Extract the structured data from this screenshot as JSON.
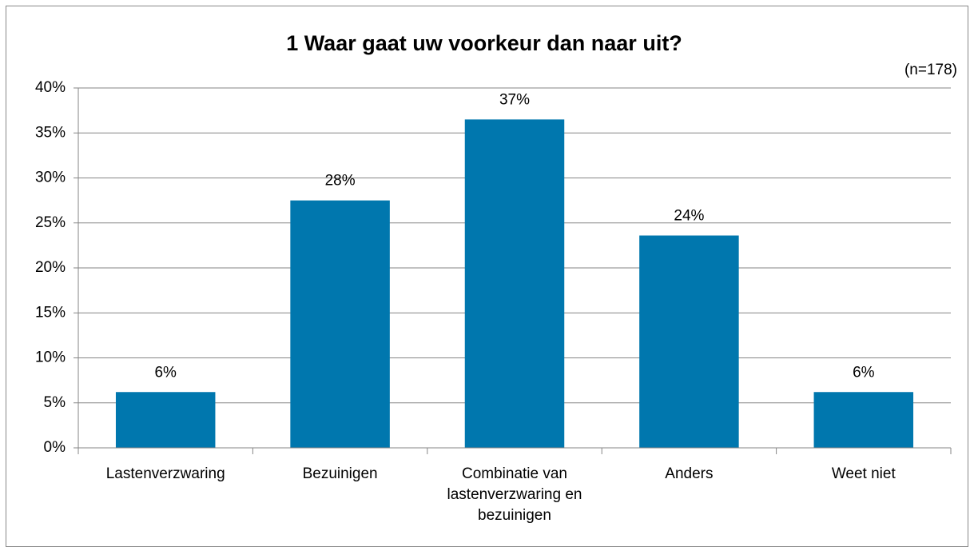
{
  "chart_data": {
    "type": "bar",
    "title": "1 Waar gaat uw voorkeur dan naar uit?",
    "annotation": "(n=178)",
    "categories": [
      "Lastenverzwaring",
      "Bezuinigen",
      "Combinatie van lastenverzwaring en bezuinigen",
      "Anders",
      "Weet niet"
    ],
    "values": [
      6.2,
      27.5,
      36.5,
      23.6,
      6.2
    ],
    "value_labels": [
      "6%",
      "28%",
      "37%",
      "24%",
      "6%"
    ],
    "color": "#0077ae",
    "ylim": [
      0,
      40
    ],
    "yticks": [
      {
        "value": 0,
        "label": "0%"
      },
      {
        "value": 5,
        "label": "5%"
      },
      {
        "value": 10,
        "label": "10%"
      },
      {
        "value": 15,
        "label": "15%"
      },
      {
        "value": 20,
        "label": "20%"
      },
      {
        "value": 25,
        "label": "25%"
      },
      {
        "value": 30,
        "label": "30%"
      },
      {
        "value": 35,
        "label": "35%"
      },
      {
        "value": 40,
        "label": "40%"
      }
    ],
    "grid": true
  }
}
